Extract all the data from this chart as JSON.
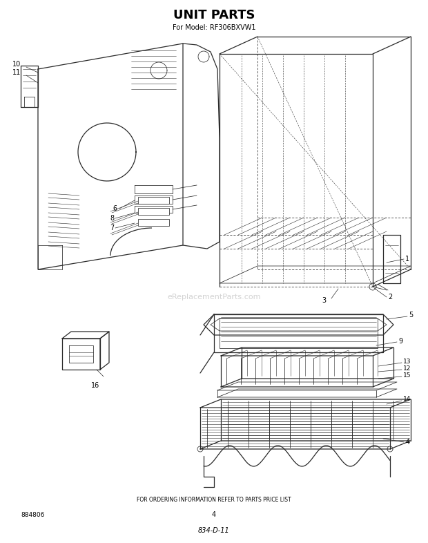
{
  "title": "UNIT PARTS",
  "subtitle": "For Model: RF306BXVW1",
  "footer_text": "FOR ORDERING INFORMATION REFER TO PARTS PRICE LIST",
  "page_number": "4",
  "doc_number": "834-D-11",
  "part_number_left": "884806",
  "watermark": "eReplacementParts.com",
  "bg_color": "#ffffff",
  "lc": "#2a2a2a",
  "title_fontsize": 13,
  "subtitle_fontsize": 7
}
